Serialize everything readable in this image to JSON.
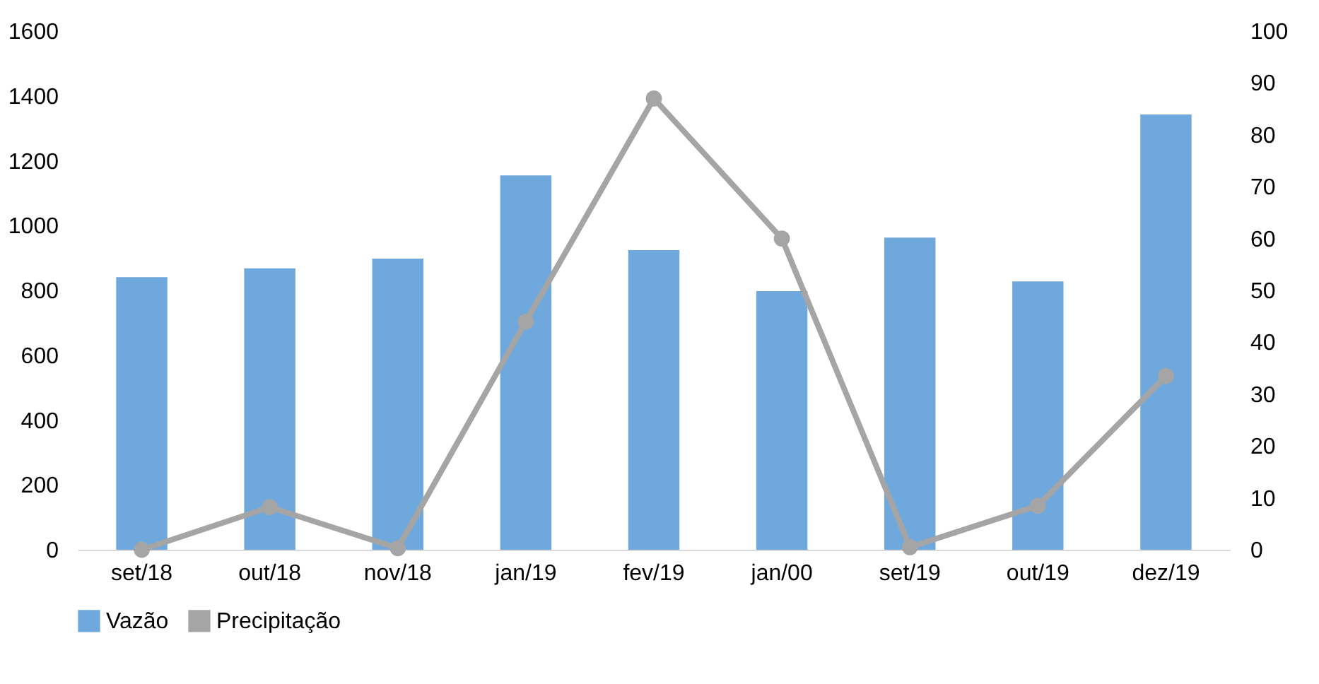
{
  "chart_data": {
    "type": "bar",
    "categories": [
      "set/18",
      "out/18",
      "nov/18",
      "jan/19",
      "fev/19",
      "jan/00",
      "set/19",
      "out/19",
      "dez/19"
    ],
    "series": [
      {
        "name": "Vazão",
        "color": "#6fa8dc",
        "values": [
          841,
          868,
          898,
          1155,
          924,
          798,
          963,
          828,
          1343
        ]
      },
      {
        "name": "Precipitação",
        "type": "line",
        "axis": "y2",
        "color": "#a5a5a5",
        "values": [
          0,
          8.2,
          0.3,
          44,
          87,
          60,
          0.5,
          8.5,
          33.5
        ]
      }
    ],
    "ylim": [
      0,
      1600
    ],
    "yticks": [
      0,
      200,
      400,
      600,
      800,
      1000,
      1200,
      1400,
      1600
    ],
    "y2lim": [
      0,
      100
    ],
    "y2ticks": [
      0,
      10,
      20,
      30,
      40,
      50,
      60,
      70,
      80,
      90,
      100
    ],
    "grid": false,
    "legend": "bottom",
    "marker": "circle",
    "line_style": "solid"
  }
}
